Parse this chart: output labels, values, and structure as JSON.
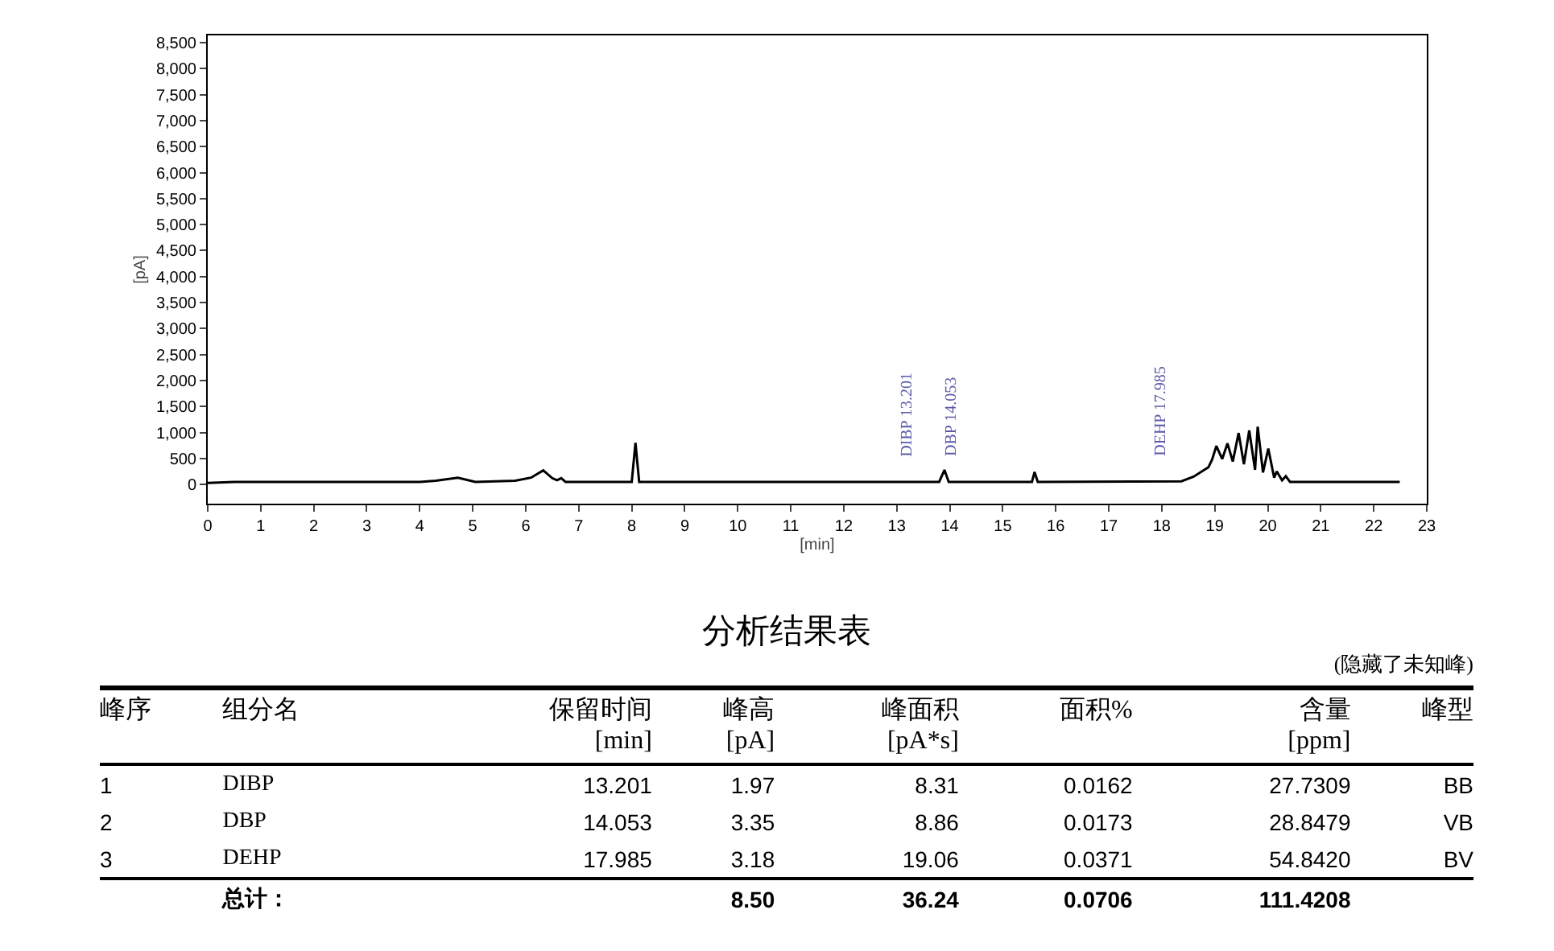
{
  "chart_data": [
    {
      "type": "line",
      "xlabel": "[min]",
      "ylabel": "[pA]",
      "x": [
        0,
        0.5,
        2,
        4,
        4.3,
        4.72,
        5.05,
        5.8,
        6.1,
        6.33,
        6.5,
        6.59,
        6.67,
        6.75,
        8.0,
        8.07,
        8.14,
        13.8,
        13.9,
        13.98,
        15.55,
        15.6,
        15.66,
        18.37,
        18.6,
        18.88,
        18.95,
        19.03,
        19.14,
        19.24,
        19.34,
        19.45,
        19.55,
        19.65,
        19.76,
        19.81,
        19.91,
        20.01,
        20.12,
        20.17,
        20.27,
        20.34,
        20.42,
        22.49
      ],
      "series": [
        {
          "color": "#000000",
          "values": [
            30,
            50,
            50,
            50,
            70,
            130,
            50,
            70,
            130,
            270,
            120,
            80,
            120,
            50,
            50,
            800,
            50,
            50,
            280,
            50,
            50,
            240,
            50,
            60,
            150,
            330,
            480,
            740,
            490,
            790,
            440,
            990,
            390,
            1040,
            280,
            1110,
            230,
            690,
            130,
            250,
            80,
            160,
            50,
            50
          ]
        }
      ],
      "xlim": [
        0,
        23
      ],
      "ylim": [
        -370,
        8640
      ],
      "xticks": [
        0,
        1,
        2,
        3,
        4,
        5,
        6,
        7,
        8,
        9,
        10,
        11,
        12,
        13,
        14,
        15,
        16,
        17,
        18,
        19,
        20,
        21,
        22,
        23
      ],
      "yticks": [
        0,
        500,
        {
          "value": 1000,
          "label": "1,000"
        },
        {
          "value": 1500,
          "label": "1,500"
        },
        {
          "value": 2000,
          "label": "2,000"
        },
        {
          "value": 2500,
          "label": "2,500"
        },
        {
          "value": 3000,
          "label": "3,000"
        },
        {
          "value": 3500,
          "label": "3,500"
        },
        {
          "value": 4000,
          "label": "4,000"
        },
        {
          "value": 4500,
          "label": "4,500"
        },
        {
          "value": 5000,
          "label": "5,000"
        },
        {
          "value": 5500,
          "label": "5,500"
        },
        {
          "value": 6000,
          "label": "6,000"
        },
        {
          "value": 6500,
          "label": "6,500"
        },
        {
          "value": 7000,
          "label": "7,000"
        },
        {
          "value": 7500,
          "label": "7,500"
        },
        {
          "value": 8000,
          "label": "8,000"
        },
        {
          "value": 8500,
          "label": "8,500"
        }
      ],
      "annotations": [
        {
          "text": "DIBP 13.201",
          "x": 13.201,
          "y": 50
        },
        {
          "text": "DBP 14.053",
          "x": 14.053,
          "y": 50
        },
        {
          "text": "DEHP 17.985",
          "x": 17.985,
          "y": 50
        }
      ],
      "grid": false,
      "marker": "none",
      "line_style": "solid"
    },
    {
      "type": "other",
      "title": "分析结果表",
      "subtitle": "(隐藏了未知峰)",
      "categories": [
        "峰序",
        "组分名",
        "保留时间\n[min]",
        "峰高\n[pA]",
        "峰面积\n[pA*s]",
        "面积%",
        "含量\n[ppm]",
        "峰型"
      ],
      "cell_labels": [
        [
          "1",
          "DIBP",
          "13.201",
          "1.97",
          "8.31",
          "0.0162",
          "27.7309",
          "BB"
        ],
        [
          "2",
          "DBP",
          "14.053",
          "3.35",
          "8.86",
          "0.0173",
          "28.8479",
          "VB"
        ],
        [
          "3",
          "DEHP",
          "17.985",
          "3.18",
          "19.06",
          "0.0371",
          "54.8420",
          "BV"
        ],
        [
          null,
          "总计：",
          null,
          "8.50",
          "36.24",
          "0.0706",
          "111.4208",
          null
        ]
      ]
    }
  ]
}
